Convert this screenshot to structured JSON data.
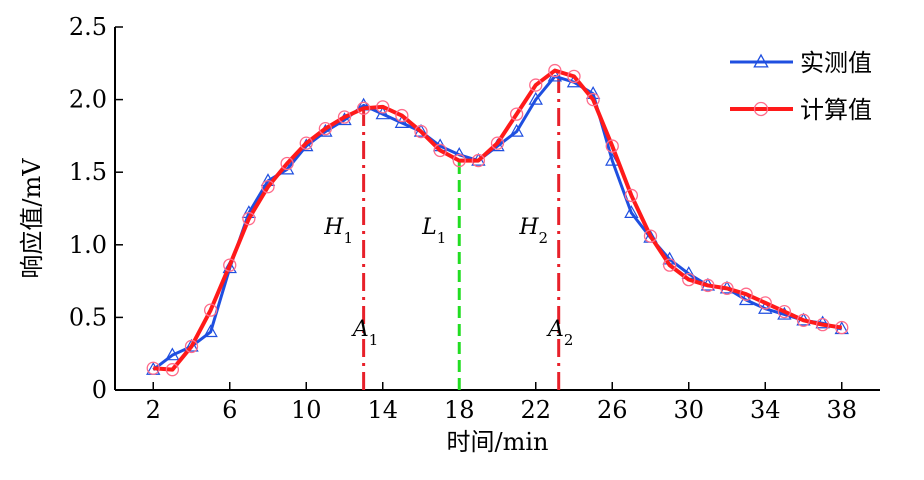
{
  "chart_data": {
    "type": "line",
    "title": "",
    "xlabel": "时间/min",
    "ylabel": "响应值/mV",
    "xlim": [
      0,
      40
    ],
    "ylim": [
      0,
      2.5
    ],
    "xticks": [
      2,
      6,
      10,
      14,
      18,
      22,
      26,
      30,
      34,
      38
    ],
    "yticks": [
      0,
      0.5,
      1.0,
      1.5,
      2.0,
      2.5
    ],
    "ytick_labels": [
      "0",
      "0.5",
      "1.0",
      "1.5",
      "2.0",
      "2.5"
    ],
    "grid": false,
    "legend": "top-right",
    "series": [
      {
        "name": "实测值",
        "color": "#1f4fe0",
        "marker": "triangle",
        "x": [
          2,
          3,
          4,
          5,
          6,
          7,
          8,
          9,
          10,
          11,
          12,
          13,
          14,
          15,
          16,
          17,
          18,
          19,
          20,
          21,
          22,
          23,
          24,
          25,
          26,
          27,
          28,
          29,
          30,
          31,
          32,
          33,
          34,
          35,
          36,
          37,
          38
        ],
        "values": [
          0.14,
          0.24,
          0.3,
          0.4,
          0.84,
          1.22,
          1.44,
          1.52,
          1.68,
          1.78,
          1.86,
          1.96,
          1.9,
          1.84,
          1.78,
          1.68,
          1.62,
          1.58,
          1.68,
          1.78,
          2.0,
          2.16,
          2.12,
          2.04,
          1.58,
          1.22,
          1.05,
          0.9,
          0.8,
          0.72,
          0.7,
          0.62,
          0.56,
          0.52,
          0.48,
          0.46,
          0.42
        ]
      },
      {
        "name": "计算值",
        "color": "#ff1a1a",
        "marker": "circle",
        "x": [
          2,
          3,
          4,
          5,
          6,
          7,
          8,
          9,
          10,
          11,
          12,
          13,
          14,
          15,
          16,
          17,
          18,
          19,
          20,
          21,
          22,
          23,
          24,
          25,
          26,
          27,
          28,
          29,
          30,
          31,
          32,
          33,
          34,
          35,
          36,
          37,
          38
        ],
        "values": [
          0.15,
          0.14,
          0.3,
          0.55,
          0.86,
          1.18,
          1.4,
          1.56,
          1.7,
          1.8,
          1.88,
          1.94,
          1.95,
          1.89,
          1.78,
          1.65,
          1.58,
          1.58,
          1.7,
          1.9,
          2.1,
          2.2,
          2.16,
          2.0,
          1.68,
          1.34,
          1.06,
          0.86,
          0.76,
          0.72,
          0.7,
          0.66,
          0.6,
          0.54,
          0.48,
          0.45,
          0.43
        ]
      }
    ],
    "markers": [
      {
        "top_label": "H",
        "top_sub": "1",
        "bottom_label": "A",
        "bottom_sub": "1",
        "x": 13,
        "y": 1.96,
        "color": "#e8202a",
        "dash": "dashdot"
      },
      {
        "top_label": "L",
        "top_sub": "1",
        "bottom_label": "",
        "bottom_sub": "",
        "x": 18,
        "y": 1.58,
        "color": "#22dd22",
        "dash": "dashed"
      },
      {
        "top_label": "H",
        "top_sub": "2",
        "bottom_label": "A",
        "bottom_sub": "2",
        "x": 23.2,
        "y": 2.18,
        "color": "#e8202a",
        "dash": "dashdot"
      }
    ]
  }
}
